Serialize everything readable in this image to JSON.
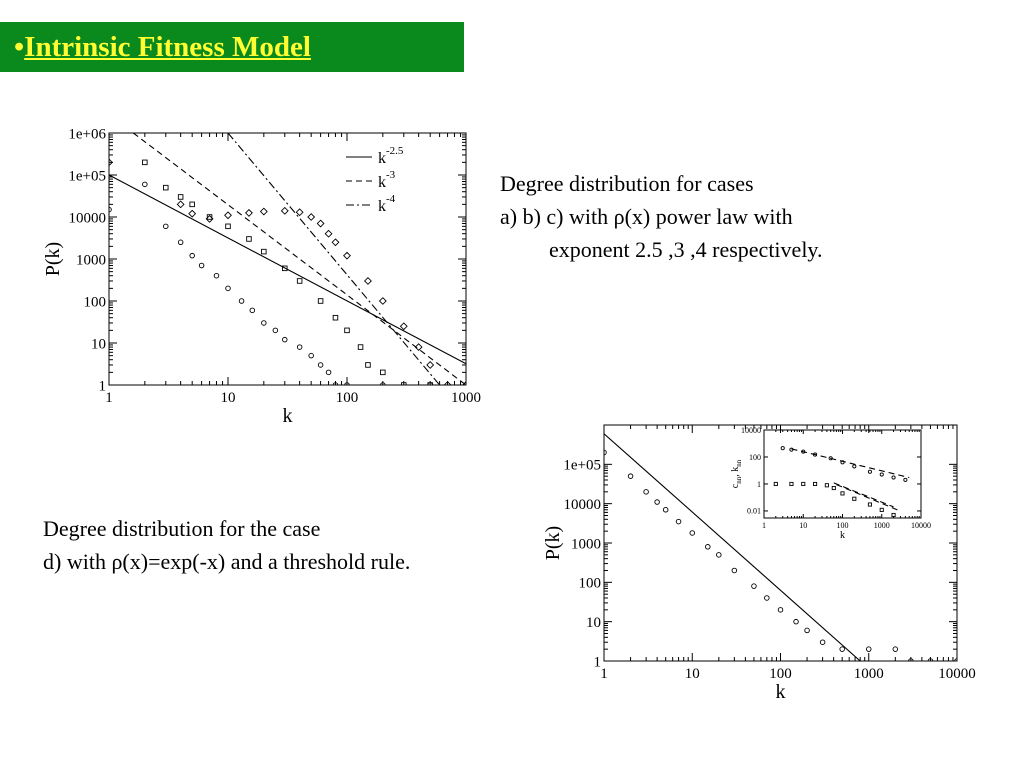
{
  "title": {
    "bullet": "•",
    "text": "Intrinsic Fitness Model"
  },
  "caption_top": {
    "line1": "Degree distribution for cases",
    "line2": "a) b) c) with ρ(x) power law with",
    "line3": "exponent 2.5 ,3 ,4 respectively."
  },
  "caption_bottom": {
    "line1": "Degree distribution for the case",
    "line2": "d) with ρ(x)=exp(-x) and a threshold rule."
  },
  "chart_data": [
    {
      "type": "scatter",
      "xscale": "log",
      "yscale": "log",
      "xlim": [
        1,
        1000
      ],
      "ylim": [
        1,
        1000000
      ],
      "xlabel": "k",
      "ylabel": "P(k)",
      "xticks": [
        "1",
        "10",
        "100",
        "1000"
      ],
      "yticks": [
        "1",
        "10",
        "100",
        "1000",
        "10000",
        "1e+05",
        "1e+06"
      ],
      "legend_position": "top-right",
      "legend": [
        {
          "base": "k",
          "exp": "-2.5",
          "style": "solid"
        },
        {
          "base": "k",
          "exp": "-3",
          "style": "dashed"
        },
        {
          "base": "k",
          "exp": "-4",
          "style": "dashdot"
        }
      ],
      "lines": [
        {
          "style": "solid",
          "points": [
            [
              1,
              100000
            ],
            [
              1000,
              3.2
            ]
          ]
        },
        {
          "style": "dashed",
          "points": [
            [
              1.6,
              1000000
            ],
            [
              1000,
              1
            ]
          ]
        },
        {
          "style": "dashdot",
          "points": [
            [
              10,
              1000000
            ],
            [
              600,
              1
            ]
          ]
        }
      ],
      "series": [
        {
          "marker": "circle",
          "points": [
            [
              1,
              15000
            ],
            [
              2,
              60000
            ],
            [
              3,
              6000
            ],
            [
              4,
              2500
            ],
            [
              5,
              1200
            ],
            [
              6,
              700
            ],
            [
              8,
              400
            ],
            [
              10,
              200
            ],
            [
              13,
              100
            ],
            [
              16,
              60
            ],
            [
              20,
              30
            ],
            [
              25,
              20
            ],
            [
              30,
              12
            ],
            [
              40,
              8
            ],
            [
              50,
              5
            ],
            [
              60,
              3
            ],
            [
              70,
              2
            ],
            [
              80,
              1
            ],
            [
              100,
              1
            ],
            [
              200,
              1
            ],
            [
              500,
              1
            ],
            [
              1000,
              1
            ]
          ]
        },
        {
          "marker": "square",
          "points": [
            [
              2,
              200000
            ],
            [
              3,
              50000
            ],
            [
              4,
              30000
            ],
            [
              5,
              20000
            ],
            [
              7,
              10000
            ],
            [
              10,
              6000
            ],
            [
              15,
              3000
            ],
            [
              20,
              1500
            ],
            [
              30,
              600
            ],
            [
              40,
              300
            ],
            [
              60,
              100
            ],
            [
              80,
              40
            ],
            [
              100,
              20
            ],
            [
              130,
              8
            ],
            [
              150,
              3
            ],
            [
              200,
              2
            ],
            [
              300,
              1
            ],
            [
              500,
              1
            ]
          ]
        },
        {
          "marker": "diamond",
          "points": [
            [
              1,
              200000
            ],
            [
              4,
              20000
            ],
            [
              5,
              12000
            ],
            [
              7,
              9000
            ],
            [
              10,
              11000
            ],
            [
              15,
              12500
            ],
            [
              20,
              13500
            ],
            [
              30,
              14000
            ],
            [
              40,
              13000
            ],
            [
              50,
              10000
            ],
            [
              60,
              7000
            ],
            [
              70,
              4000
            ],
            [
              80,
              2500
            ],
            [
              100,
              1200
            ],
            [
              150,
              300
            ],
            [
              200,
              100
            ],
            [
              300,
              25
            ],
            [
              400,
              8
            ],
            [
              500,
              3
            ],
            [
              700,
              1
            ],
            [
              1000,
              1
            ]
          ]
        }
      ]
    },
    {
      "type": "scatter",
      "xscale": "log",
      "yscale": "log",
      "xlim": [
        1,
        10000
      ],
      "ylim": [
        1,
        1000000
      ],
      "xlabel": "k",
      "ylabel": "P(k)",
      "xticks": [
        "1",
        "10",
        "100",
        "1000",
        "10000"
      ],
      "yticks": [
        "1",
        "10",
        "100",
        "1000",
        "10000",
        "1e+05"
      ],
      "lines": [
        {
          "style": "solid",
          "points": [
            [
              1,
              600000
            ],
            [
              800,
              1
            ]
          ]
        }
      ],
      "series": [
        {
          "marker": "circle",
          "points": [
            [
              1,
              200000
            ],
            [
              2,
              50000
            ],
            [
              3,
              20000
            ],
            [
              4,
              11000
            ],
            [
              5,
              7000
            ],
            [
              7,
              3500
            ],
            [
              10,
              1800
            ],
            [
              15,
              800
            ],
            [
              20,
              500
            ],
            [
              30,
              200
            ],
            [
              50,
              80
            ],
            [
              70,
              40
            ],
            [
              100,
              20
            ],
            [
              150,
              10
            ],
            [
              200,
              6
            ],
            [
              300,
              3
            ],
            [
              500,
              2
            ],
            [
              1000,
              2
            ],
            [
              2000,
              2
            ],
            [
              3000,
              1
            ],
            [
              5000,
              1
            ],
            [
              10000,
              1
            ]
          ]
        }
      ],
      "inset": {
        "type": "scatter",
        "xscale": "log",
        "yscale": "log",
        "xlim": [
          1,
          10000
        ],
        "ylim": [
          0.003,
          10000
        ],
        "xlabel": "k",
        "ylabel": "c_nn, k_nn",
        "ylabel_parts": {
          "c": "c",
          "c_sub": "nn",
          "sep": ", k",
          "k_sub": "nn"
        },
        "xticks": [
          "1",
          "10",
          "100",
          "1000",
          "10000"
        ],
        "yticks": [
          "0.01",
          "1",
          "100",
          "10000"
        ],
        "lines": [
          {
            "style": "dashed",
            "points": [
              [
                5,
                400
              ],
              [
                5000,
                3
              ]
            ]
          },
          {
            "style": "dashed",
            "points": [
              [
                60,
                1.2
              ],
              [
                2000,
                0.02
              ]
            ]
          },
          {
            "style": "dashed",
            "points": [
              [
                70,
                0.9
              ],
              [
                2500,
                0.012
              ]
            ]
          }
        ],
        "series": [
          {
            "marker": "circle",
            "points": [
              [
                3,
                450
              ],
              [
                5,
                350
              ],
              [
                10,
                250
              ],
              [
                20,
                150
              ],
              [
                50,
                80
              ],
              [
                100,
                40
              ],
              [
                200,
                20
              ],
              [
                500,
                8
              ],
              [
                1000,
                5
              ],
              [
                2000,
                3
              ],
              [
                4000,
                2
              ]
            ]
          },
          {
            "marker": "square",
            "points": [
              [
                2,
                1
              ],
              [
                5,
                1
              ],
              [
                10,
                1
              ],
              [
                20,
                1
              ],
              [
                40,
                0.8
              ],
              [
                60,
                0.5
              ],
              [
                100,
                0.2
              ],
              [
                200,
                0.08
              ],
              [
                500,
                0.03
              ],
              [
                1000,
                0.012
              ],
              [
                2000,
                0.005
              ]
            ]
          }
        ]
      }
    }
  ]
}
